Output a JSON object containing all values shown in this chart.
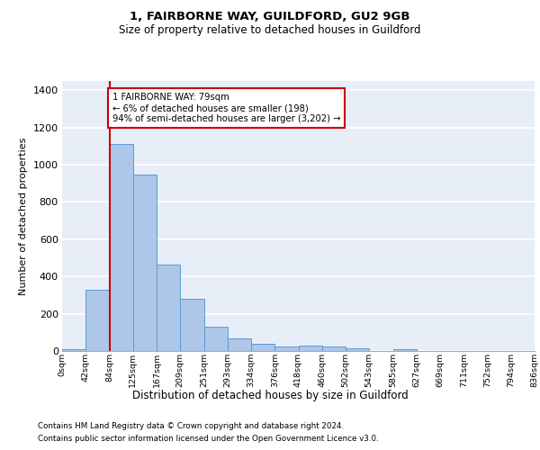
{
  "title1": "1, FAIRBORNE WAY, GUILDFORD, GU2 9GB",
  "title2": "Size of property relative to detached houses in Guildford",
  "xlabel": "Distribution of detached houses by size in Guildford",
  "ylabel": "Number of detached properties",
  "footnote1": "Contains HM Land Registry data © Crown copyright and database right 2024.",
  "footnote2": "Contains public sector information licensed under the Open Government Licence v3.0.",
  "bar_values": [
    10,
    330,
    1110,
    945,
    465,
    278,
    130,
    68,
    40,
    25,
    28,
    22,
    15,
    0,
    10,
    0,
    0,
    0,
    0,
    0
  ],
  "x_labels": [
    "0sqm",
    "42sqm",
    "84sqm",
    "125sqm",
    "167sqm",
    "209sqm",
    "251sqm",
    "293sqm",
    "334sqm",
    "376sqm",
    "418sqm",
    "460sqm",
    "502sqm",
    "543sqm",
    "585sqm",
    "627sqm",
    "669sqm",
    "711sqm",
    "752sqm",
    "794sqm",
    "836sqm"
  ],
  "bar_color": "#aec6e8",
  "bar_edge_color": "#5b9bd5",
  "background_color": "#e8eef8",
  "grid_color": "#ffffff",
  "red_line_x": 2,
  "annotation_text": "1 FAIRBORNE WAY: 79sqm\n← 6% of detached houses are smaller (198)\n94% of semi-detached houses are larger (3,202) →",
  "annotation_box_color": "#ffffff",
  "annotation_border_color": "#cc0000",
  "ylim": [
    0,
    1450
  ],
  "yticks": [
    0,
    200,
    400,
    600,
    800,
    1000,
    1200,
    1400
  ]
}
